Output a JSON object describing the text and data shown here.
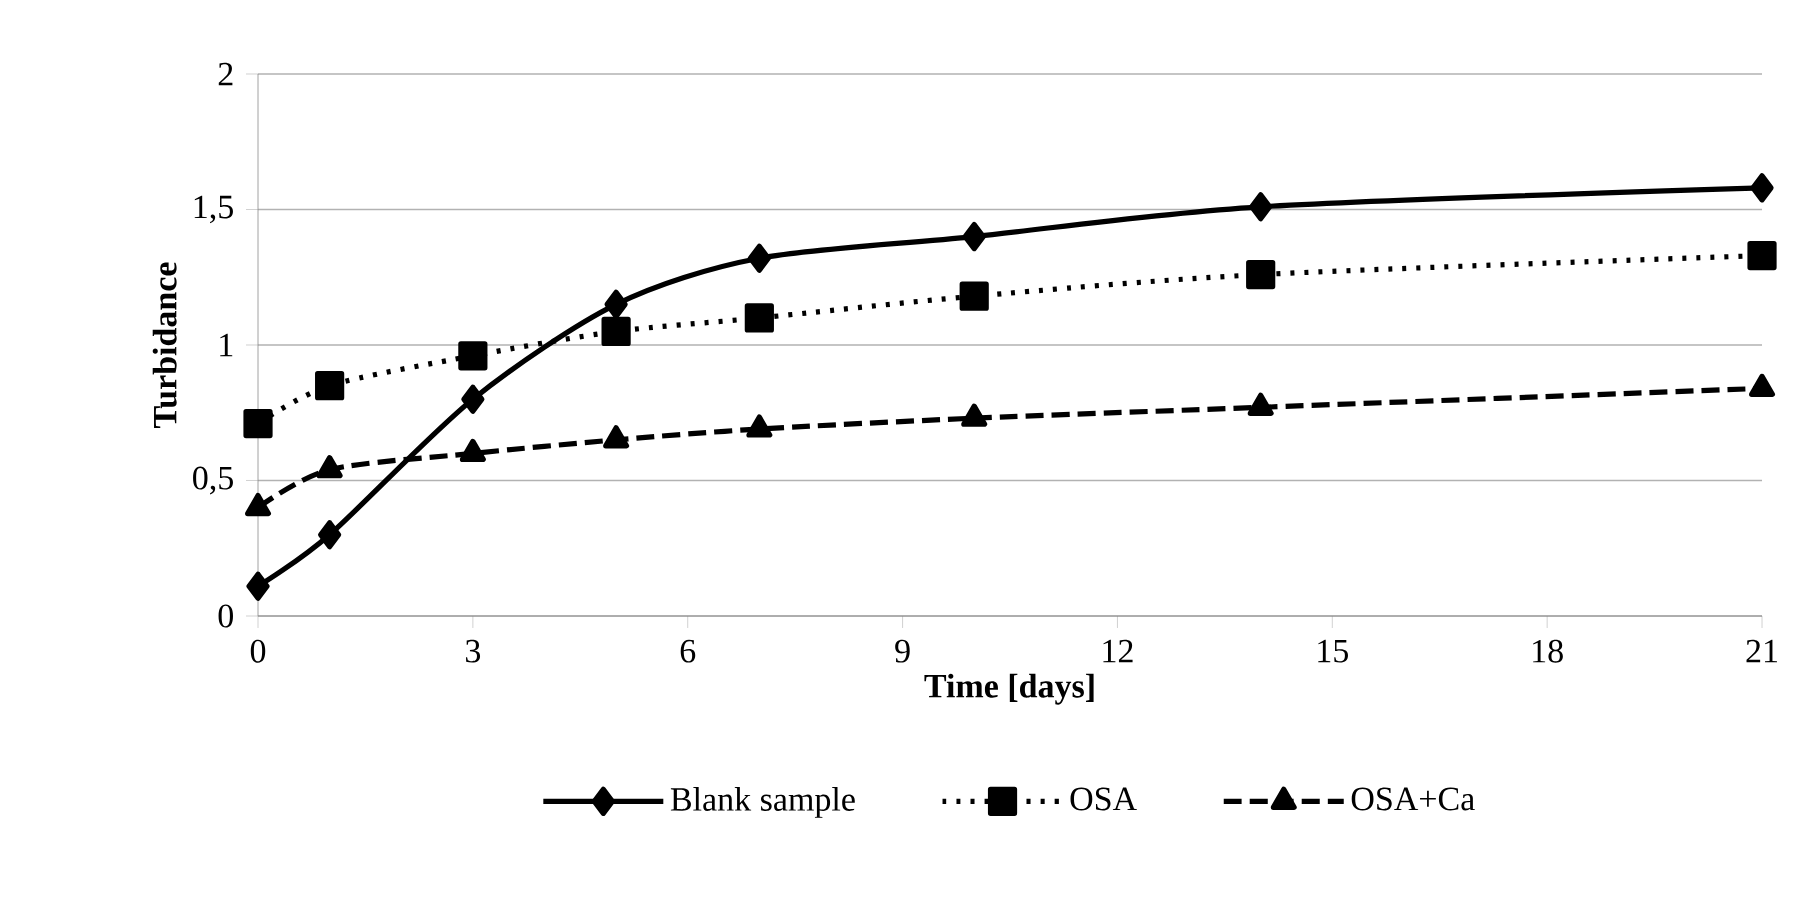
{
  "chart_data": {
    "type": "line",
    "xlabel": "Time [days]",
    "ylabel": "Turbidance",
    "x": [
      0,
      1,
      3,
      5,
      7,
      10,
      14,
      21
    ],
    "series": [
      {
        "name": "Blank sample",
        "color": "#000000",
        "marker": "diamond",
        "line_style": "solid",
        "values": [
          0.11,
          0.3,
          0.8,
          1.15,
          1.32,
          1.4,
          1.51,
          1.58
        ]
      },
      {
        "name": "OSA",
        "color": "#000000",
        "marker": "square",
        "line_style": "dotted",
        "values": [
          0.71,
          0.85,
          0.96,
          1.05,
          1.1,
          1.18,
          1.26,
          1.33
        ]
      },
      {
        "name": "OSA+Ca",
        "color": "#000000",
        "marker": "triangle",
        "line_style": "dashed",
        "values": [
          0.4,
          0.54,
          0.6,
          0.65,
          0.69,
          0.73,
          0.77,
          0.84
        ]
      }
    ],
    "xlim": [
      0,
      21
    ],
    "xticks": [
      0,
      3,
      6,
      9,
      12,
      15,
      18,
      21
    ],
    "ylim": [
      0,
      2
    ],
    "yticks": [
      0,
      {
        "value": 0.5,
        "label": "0,5"
      },
      1,
      {
        "value": 1.5,
        "label": "1,5"
      },
      2
    ],
    "grid": "y",
    "legend": "bottom"
  }
}
